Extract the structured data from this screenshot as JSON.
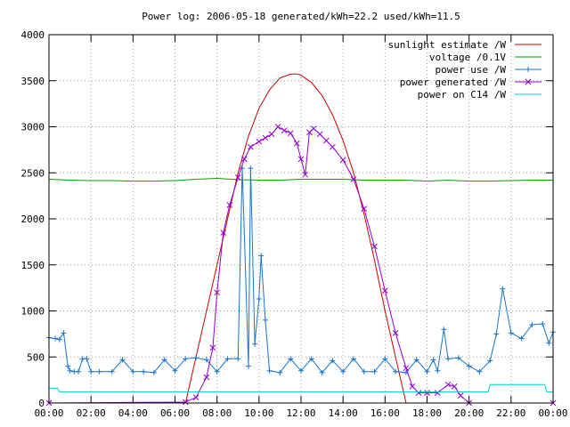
{
  "chart_data": {
    "type": "line",
    "title": "Power log: 2006-05-18 generated/kWh=22.2 used/kWh=11.5",
    "xlabel": "",
    "ylabel": "",
    "xlim": [
      0,
      24
    ],
    "ylim": [
      0,
      4000
    ],
    "x_ticks": [
      0,
      2,
      4,
      6,
      8,
      10,
      12,
      14,
      16,
      18,
      20,
      22,
      24
    ],
    "x_tick_labels": [
      "00:00",
      "02:00",
      "04:00",
      "06:00",
      "08:00",
      "10:00",
      "12:00",
      "14:00",
      "16:00",
      "18:00",
      "20:00",
      "22:00",
      "00:00"
    ],
    "y_ticks": [
      0,
      500,
      1000,
      1500,
      2000,
      2500,
      3000,
      3500,
      4000
    ],
    "y_tick_labels": [
      "0",
      "500",
      "1000",
      "1500",
      "2000",
      "2500",
      "3000",
      "3500",
      "4000"
    ],
    "grid": true,
    "legend_position": "top-right",
    "series": [
      {
        "name": "sunlight estimate /W",
        "color": "#cc0000",
        "marker": "none",
        "x": [
          6.5,
          7.0,
          7.5,
          8.0,
          8.5,
          9.0,
          9.5,
          10.0,
          10.5,
          11.0,
          11.5,
          11.75,
          12.0,
          12.5,
          13.0,
          13.5,
          14.0,
          14.5,
          15.0,
          15.5,
          16.0,
          16.5,
          17.0
        ],
        "y": [
          0,
          500,
          1000,
          1500,
          2000,
          2500,
          2900,
          3200,
          3400,
          3530,
          3570,
          3575,
          3560,
          3480,
          3340,
          3130,
          2850,
          2500,
          2050,
          1550,
          1000,
          500,
          0
        ]
      },
      {
        "name": "voltage /0.1V",
        "color": "#00a000",
        "marker": "none",
        "x": [
          0,
          1,
          2,
          3,
          4,
          5,
          6,
          7,
          8,
          9,
          10,
          11,
          12,
          13,
          14,
          15,
          16,
          17,
          18,
          19,
          20,
          21,
          22,
          23,
          24
        ],
        "y": [
          2430,
          2420,
          2415,
          2415,
          2410,
          2410,
          2415,
          2430,
          2440,
          2425,
          2420,
          2420,
          2430,
          2430,
          2430,
          2420,
          2420,
          2420,
          2410,
          2420,
          2410,
          2410,
          2415,
          2420,
          2420
        ]
      },
      {
        "name": "power use /W",
        "color": "#1874cd",
        "marker": "plus",
        "x": [
          0.0,
          0.3,
          0.5,
          0.7,
          0.9,
          1.0,
          1.2,
          1.4,
          1.6,
          1.8,
          2.0,
          2.4,
          3.0,
          3.5,
          4.0,
          4.5,
          5.0,
          5.5,
          6.0,
          6.5,
          7.0,
          7.5,
          8.0,
          8.5,
          9.0,
          9.2,
          9.5,
          9.6,
          9.8,
          10.0,
          10.1,
          10.3,
          10.5,
          11.0,
          11.5,
          12.0,
          12.5,
          13.0,
          13.5,
          14.0,
          14.5,
          15.0,
          15.5,
          16.0,
          16.5,
          17.0,
          17.5,
          18.0,
          18.3,
          18.5,
          18.8,
          19.0,
          19.5,
          20.0,
          20.5,
          21.0,
          21.3,
          21.6,
          22.0,
          22.5,
          23.0,
          23.5,
          23.8,
          24.0
        ],
        "y": [
          710,
          700,
          690,
          760,
          400,
          350,
          340,
          340,
          480,
          480,
          340,
          340,
          340,
          470,
          340,
          340,
          330,
          470,
          350,
          480,
          490,
          470,
          340,
          480,
          480,
          2550,
          400,
          2550,
          640,
          1130,
          1600,
          900,
          350,
          330,
          480,
          350,
          480,
          330,
          460,
          340,
          480,
          340,
          340,
          480,
          340,
          330,
          470,
          340,
          470,
          350,
          800,
          480,
          490,
          400,
          340,
          460,
          750,
          1240,
          760,
          700,
          850,
          860,
          650,
          770
        ]
      },
      {
        "name": "power generated /W",
        "color": "#9400d3",
        "marker": "cross",
        "x": [
          0,
          6.5,
          7.0,
          7.5,
          7.8,
          8.0,
          8.3,
          8.6,
          9.0,
          9.3,
          9.6,
          10.0,
          10.3,
          10.6,
          10.9,
          11.2,
          11.5,
          11.8,
          12.0,
          12.2,
          12.4,
          12.6,
          12.9,
          13.2,
          13.5,
          14.0,
          14.5,
          15.0,
          15.5,
          16.0,
          16.5,
          17.0,
          17.3,
          17.6,
          18.0,
          18.5,
          19.0,
          19.3,
          19.6,
          20.0,
          24.0
        ],
        "y": [
          0,
          10,
          60,
          280,
          600,
          1200,
          1850,
          2150,
          2450,
          2650,
          2780,
          2840,
          2880,
          2920,
          3000,
          2960,
          2930,
          2820,
          2650,
          2480,
          2940,
          2980,
          2920,
          2850,
          2780,
          2640,
          2430,
          2110,
          1700,
          1220,
          760,
          380,
          180,
          110,
          110,
          110,
          200,
          180,
          80,
          0,
          0
        ]
      },
      {
        "name": "power on C14 /W",
        "color": "#00cdcd",
        "marker": "none",
        "x": [
          0.0,
          0.4,
          0.5,
          1.0,
          4.0,
          8.0,
          12.0,
          16.0,
          20.0,
          20.9,
          21.0,
          22.0,
          23.6,
          23.7,
          24.0
        ],
        "y": [
          160,
          160,
          120,
          120,
          120,
          120,
          120,
          120,
          120,
          120,
          200,
          200,
          200,
          120,
          120
        ]
      }
    ]
  }
}
